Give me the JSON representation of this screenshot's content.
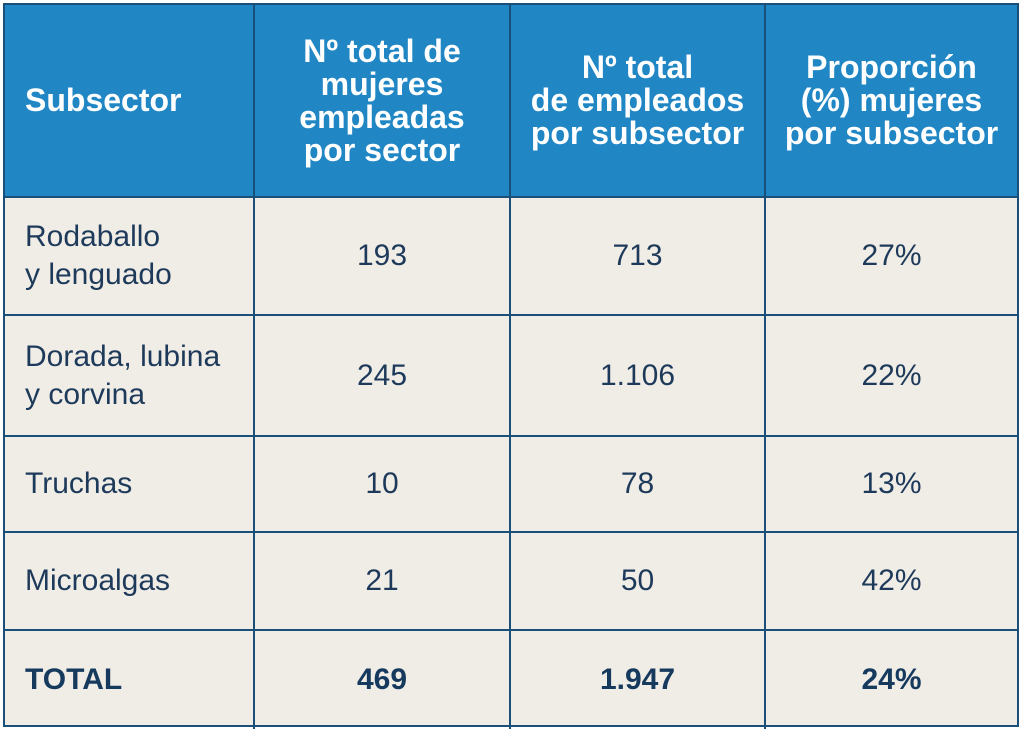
{
  "table": {
    "headers": [
      "Subsector",
      "Nº total de\nmujeres\nempleadas\npor sector",
      "Nº total\nde empleados\npor subsector",
      "Proporción\n(%) mujeres\npor subsector"
    ],
    "rows": [
      {
        "subsector": "Rodaballo\ny lenguado",
        "mujeres": "193",
        "empleados": "713",
        "proporcion": "27%"
      },
      {
        "subsector": "Dorada, lubina\ny corvina",
        "mujeres": "245",
        "empleados": "1.106",
        "proporcion": "22%"
      },
      {
        "subsector": "Truchas",
        "mujeres": "10",
        "empleados": "78",
        "proporcion": "13%"
      },
      {
        "subsector": "Microalgas",
        "mujeres": "21",
        "empleados": "50",
        "proporcion": "42%"
      }
    ],
    "total": {
      "label": "TOTAL",
      "mujeres": "469",
      "empleados": "1.947",
      "proporcion": "24%"
    }
  },
  "colors": {
    "header_bg": "#2186c4",
    "body_bg": "#f0ece6",
    "border": "#1a4f7a",
    "text": "#1e3a5a"
  }
}
